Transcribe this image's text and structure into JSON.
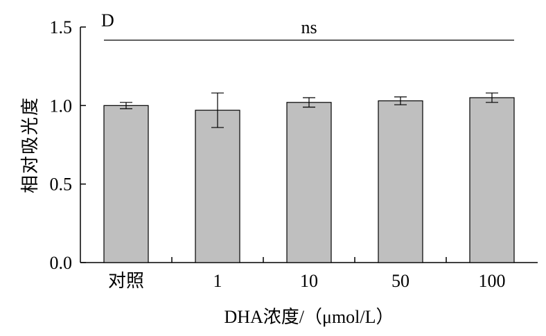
{
  "chart_data": {
    "type": "bar",
    "panel_label": "D",
    "categories": [
      "对照",
      "1",
      "10",
      "50",
      "100"
    ],
    "values": [
      1.0,
      0.97,
      1.02,
      1.03,
      1.05
    ],
    "errors": [
      0.02,
      0.11,
      0.03,
      0.025,
      0.03
    ],
    "xlabel": "DHA浓度/（μmol/L）",
    "ylabel": "相对吸光度",
    "ylim": [
      0,
      1.5
    ],
    "yticks": [
      "0.0",
      "0.5",
      "1.0",
      "1.5"
    ],
    "significance": {
      "label": "ns",
      "from_category": 0,
      "to_category": 4
    },
    "bar_color": "#bfbfbf",
    "grid": false
  }
}
